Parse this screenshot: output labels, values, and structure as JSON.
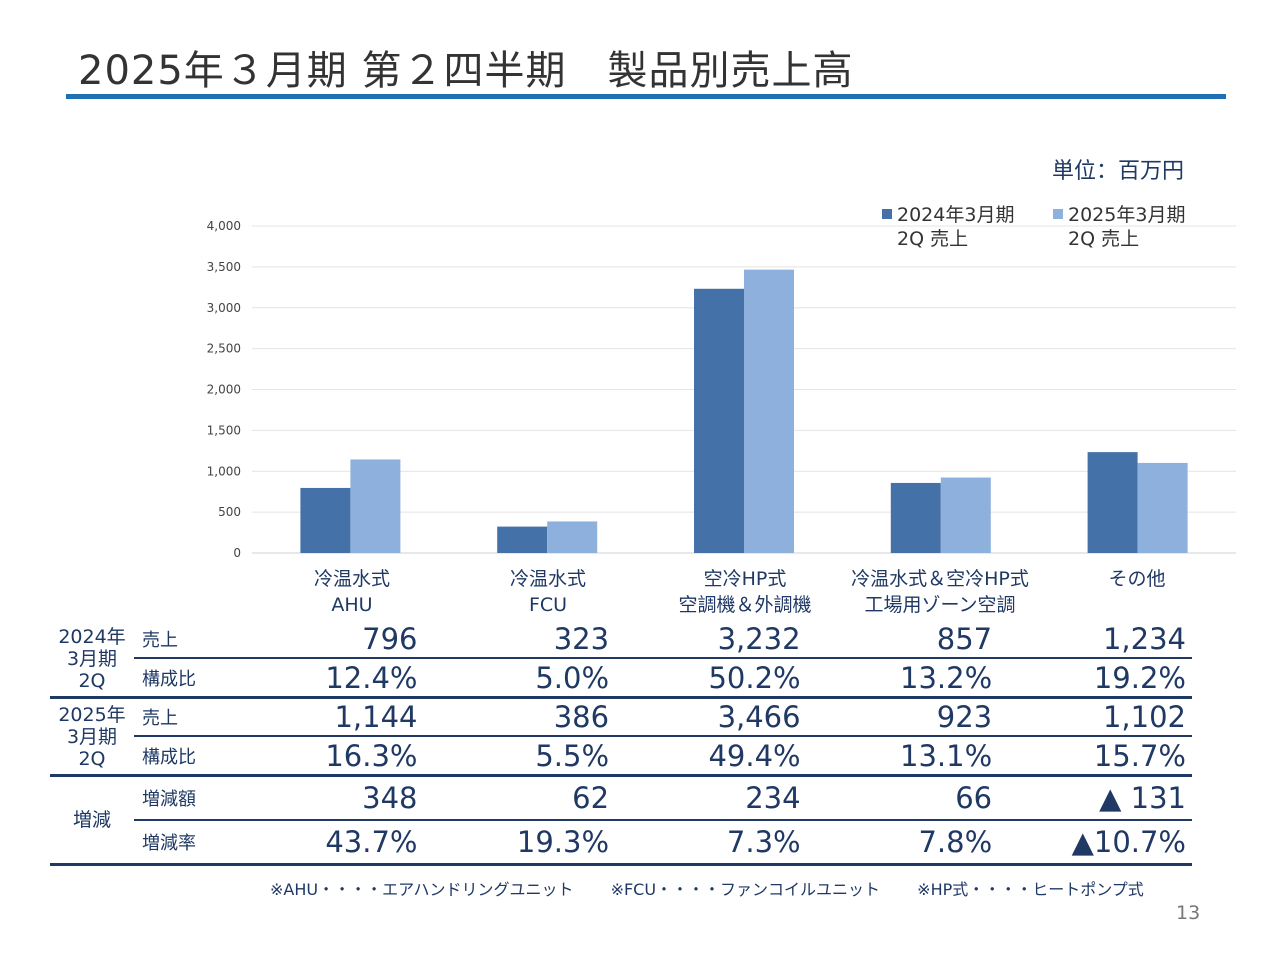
{
  "header": {
    "title": "2025年３月期 第２四半期　製品別売上高",
    "unit": "単位：百万円"
  },
  "legend": [
    {
      "name": "2024年3月期 2Q 売上",
      "line1": "2024年3月期",
      "line2": "2Q 売上",
      "color": "#4472a8"
    },
    {
      "name": "2025年3月期 2Q 売上",
      "line1": "2025年3月期",
      "line2": "2Q 売上",
      "color": "#8db0dc"
    }
  ],
  "chart_data": {
    "type": "bar",
    "categories": [
      "冷温水式 AHU",
      "冷温水式 FCU",
      "空冷HP式 空調機＆外調機",
      "冷温水式＆空冷HP式 工場用ゾーン空調",
      "その他"
    ],
    "category_lines": [
      [
        "冷温水式",
        "AHU"
      ],
      [
        "冷温水式",
        "FCU"
      ],
      [
        "空冷HP式",
        "空調機＆外調機"
      ],
      [
        "冷温水式＆空冷HP式",
        "工場用ゾーン空調"
      ],
      [
        "その他",
        ""
      ]
    ],
    "series": [
      {
        "name": "2024年3月期 2Q 売上",
        "values": [
          796,
          323,
          3232,
          857,
          1234
        ],
        "color": "#4472a8"
      },
      {
        "name": "2025年3月期 2Q 売上",
        "values": [
          1144,
          386,
          3466,
          923,
          1102
        ],
        "color": "#8db0dc"
      }
    ],
    "ylim": [
      0,
      4000
    ],
    "yticks": [
      0,
      500,
      1000,
      1500,
      2000,
      2500,
      3000,
      3500,
      4000
    ],
    "ytick_labels": [
      "0",
      "500",
      "1,000",
      "1,500",
      "2,000",
      "2,500",
      "3,000",
      "3,500",
      "4,000"
    ],
    "grid": true,
    "legend_position": "top-right"
  },
  "table": {
    "groups": {
      "fy2024": [
        "2024年",
        "3月期",
        "2Q"
      ],
      "fy2025": [
        "2025年",
        "3月期",
        "2Q"
      ],
      "change": "増減"
    },
    "rows": [
      {
        "label": "売上",
        "values": [
          "796",
          "323",
          "3,232",
          "857",
          "1,234"
        ]
      },
      {
        "label": "構成比",
        "values": [
          "12.4%",
          "5.0%",
          "50.2%",
          "13.2%",
          "19.2%"
        ]
      },
      {
        "label": "売上",
        "values": [
          "1,144",
          "386",
          "3,466",
          "923",
          "1,102"
        ]
      },
      {
        "label": "構成比",
        "values": [
          "16.3%",
          "5.5%",
          "49.4%",
          "13.1%",
          "15.7%"
        ]
      },
      {
        "label": "増減額",
        "values": [
          "348",
          "62",
          "234",
          "66",
          "▲ 131"
        ]
      },
      {
        "label": "増減率",
        "values": [
          "43.7%",
          "19.3%",
          "7.3%",
          "7.8%",
          "▲10.7%"
        ]
      }
    ]
  },
  "footnotes": [
    "※AHU・・・・エアハンドリングユニット",
    "※FCU・・・・ファンコイルユニット",
    "※HP式・・・・ヒートポンプ式"
  ],
  "page_number": "13"
}
